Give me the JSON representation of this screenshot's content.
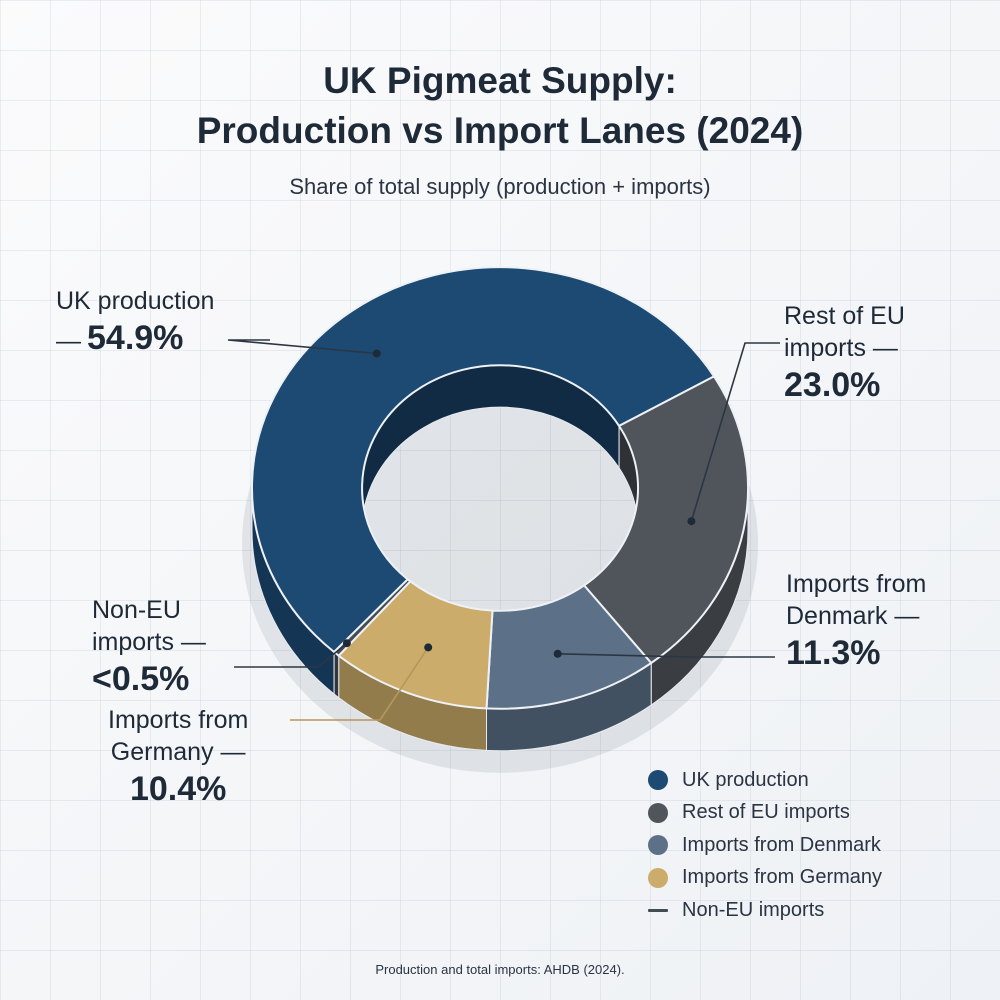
{
  "chart_data": {
    "type": "pie",
    "title_lines": [
      "UK Pigmeat Supply:",
      "Production vs Import Lanes (2024)"
    ],
    "subtitle": "Share of total supply (production + imports)",
    "slices": [
      {
        "name": "UK production",
        "value": 54.9,
        "display": "54.9%",
        "color": "#1c4a73"
      },
      {
        "name": "Rest of EU imports",
        "value": 23.0,
        "display": "23.0%",
        "color": "#50555c"
      },
      {
        "name": "Imports from Denmark",
        "value": 11.3,
        "display": "11.3%",
        "color": "#5c7188"
      },
      {
        "name": "Imports from Germany",
        "value": 10.4,
        "display": "10.4%",
        "color": "#cbac6a"
      },
      {
        "name": "Non-EU imports",
        "value": 0.4,
        "display": "<0.5%",
        "color": "#444c56"
      }
    ],
    "legend_placement": "bottom-right",
    "donut": true
  },
  "labels": {
    "uk": {
      "name": "UK production",
      "dash": "—",
      "pct": "54.9%"
    },
    "eu": {
      "line1": "Rest of EU",
      "line2": "imports —",
      "pct": "23.0%"
    },
    "dk": {
      "line1": "Imports from",
      "line2": "Denmark —",
      "pct": "11.3%"
    },
    "ne": {
      "line1": "Non-EU",
      "line2": "imports —",
      "pct": "<0.5%"
    },
    "de": {
      "line1": "Imports from",
      "line2": "Germany —",
      "pct": "10.4%"
    }
  },
  "legend": [
    {
      "label": "UK production",
      "color": "#1c4a73",
      "shape": "circle"
    },
    {
      "label": "Rest of EU imports",
      "color": "#50555c",
      "shape": "circle"
    },
    {
      "label": "Imports from Denmark",
      "color": "#5c7188",
      "shape": "circle"
    },
    {
      "label": "Imports from Germany",
      "color": "#cbac6a",
      "shape": "circle"
    },
    {
      "label": "Non-EU imports",
      "color": "#444c56",
      "shape": "line"
    }
  ],
  "source": "Production and total imports: AHDB (2024)."
}
